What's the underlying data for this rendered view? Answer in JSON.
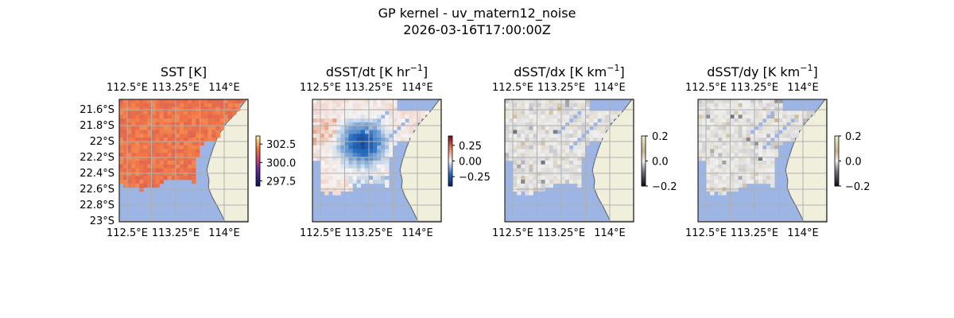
{
  "figure": {
    "title_line1": "GP kernel - uv_matern12_noise",
    "title_line2": "2026-03-16T17:00:00Z"
  },
  "colors": {
    "ocean_mask": "#9db5e4",
    "land": "#efefdb",
    "coast": "#6f6f6f",
    "grid": "#b0b0b0"
  },
  "chart_data": [
    {
      "type": "heatmap",
      "title": "SST [K]",
      "lon_ticks": [
        "112.5°E",
        "113.25°E",
        "114°E"
      ],
      "lat_ticks": [
        "21.6°S",
        "21.8°S",
        "22°S",
        "22.2°S",
        "22.4°S",
        "22.6°S",
        "22.8°S",
        "23°S"
      ],
      "show_lat_labels": true,
      "colorbar": {
        "ticks": [
          "302.5",
          "300.0",
          "297.5"
        ],
        "values": [
          302.5,
          300.0,
          297.5
        ],
        "range": [
          296.8,
          303.6
        ],
        "colormap": "thermal"
      },
      "value_range": [
        296.8,
        303.6
      ],
      "grid": true
    },
    {
      "type": "heatmap",
      "title": "dSST/dt [K hr",
      "title_exp": "−1",
      "title_end": "]",
      "lon_ticks": [
        "112.5°E",
        "113.25°E",
        "114°E"
      ],
      "show_lat_labels": false,
      "colorbar": {
        "ticks": [
          "0.25",
          "0.00",
          "−0.25"
        ],
        "values": [
          0.25,
          0.0,
          -0.25
        ],
        "range": [
          -0.4,
          0.4
        ],
        "colormap": "diverging"
      },
      "value_range": [
        -0.4,
        0.4
      ],
      "grid": true
    },
    {
      "type": "heatmap",
      "title": "dSST/dx [K km",
      "title_exp": "−1",
      "title_end": "]",
      "lon_ticks": [
        "112.5°E",
        "113.25°E",
        "114°E"
      ],
      "show_lat_labels": false,
      "colorbar": {
        "ticks": [
          "0.2",
          "0.0",
          "−0.2"
        ],
        "values": [
          0.2,
          0.0,
          -0.2
        ],
        "range": [
          -0.2,
          0.2
        ],
        "colormap": "gray_brown"
      },
      "value_range": [
        -0.2,
        0.2
      ],
      "grid": true
    },
    {
      "type": "heatmap",
      "title": "dSST/dy [K km",
      "title_exp": "−1",
      "title_end": "]",
      "lon_ticks": [
        "112.5°E",
        "113.25°E",
        "114°E"
      ],
      "show_lat_labels": false,
      "colorbar": {
        "ticks": [
          "0.2",
          "0.0",
          "−0.2"
        ],
        "values": [
          0.2,
          0.0,
          -0.2
        ],
        "range": [
          -0.2,
          0.2
        ],
        "colormap": "gray_brown"
      },
      "value_range": [
        -0.2,
        0.2
      ],
      "grid": true
    }
  ]
}
